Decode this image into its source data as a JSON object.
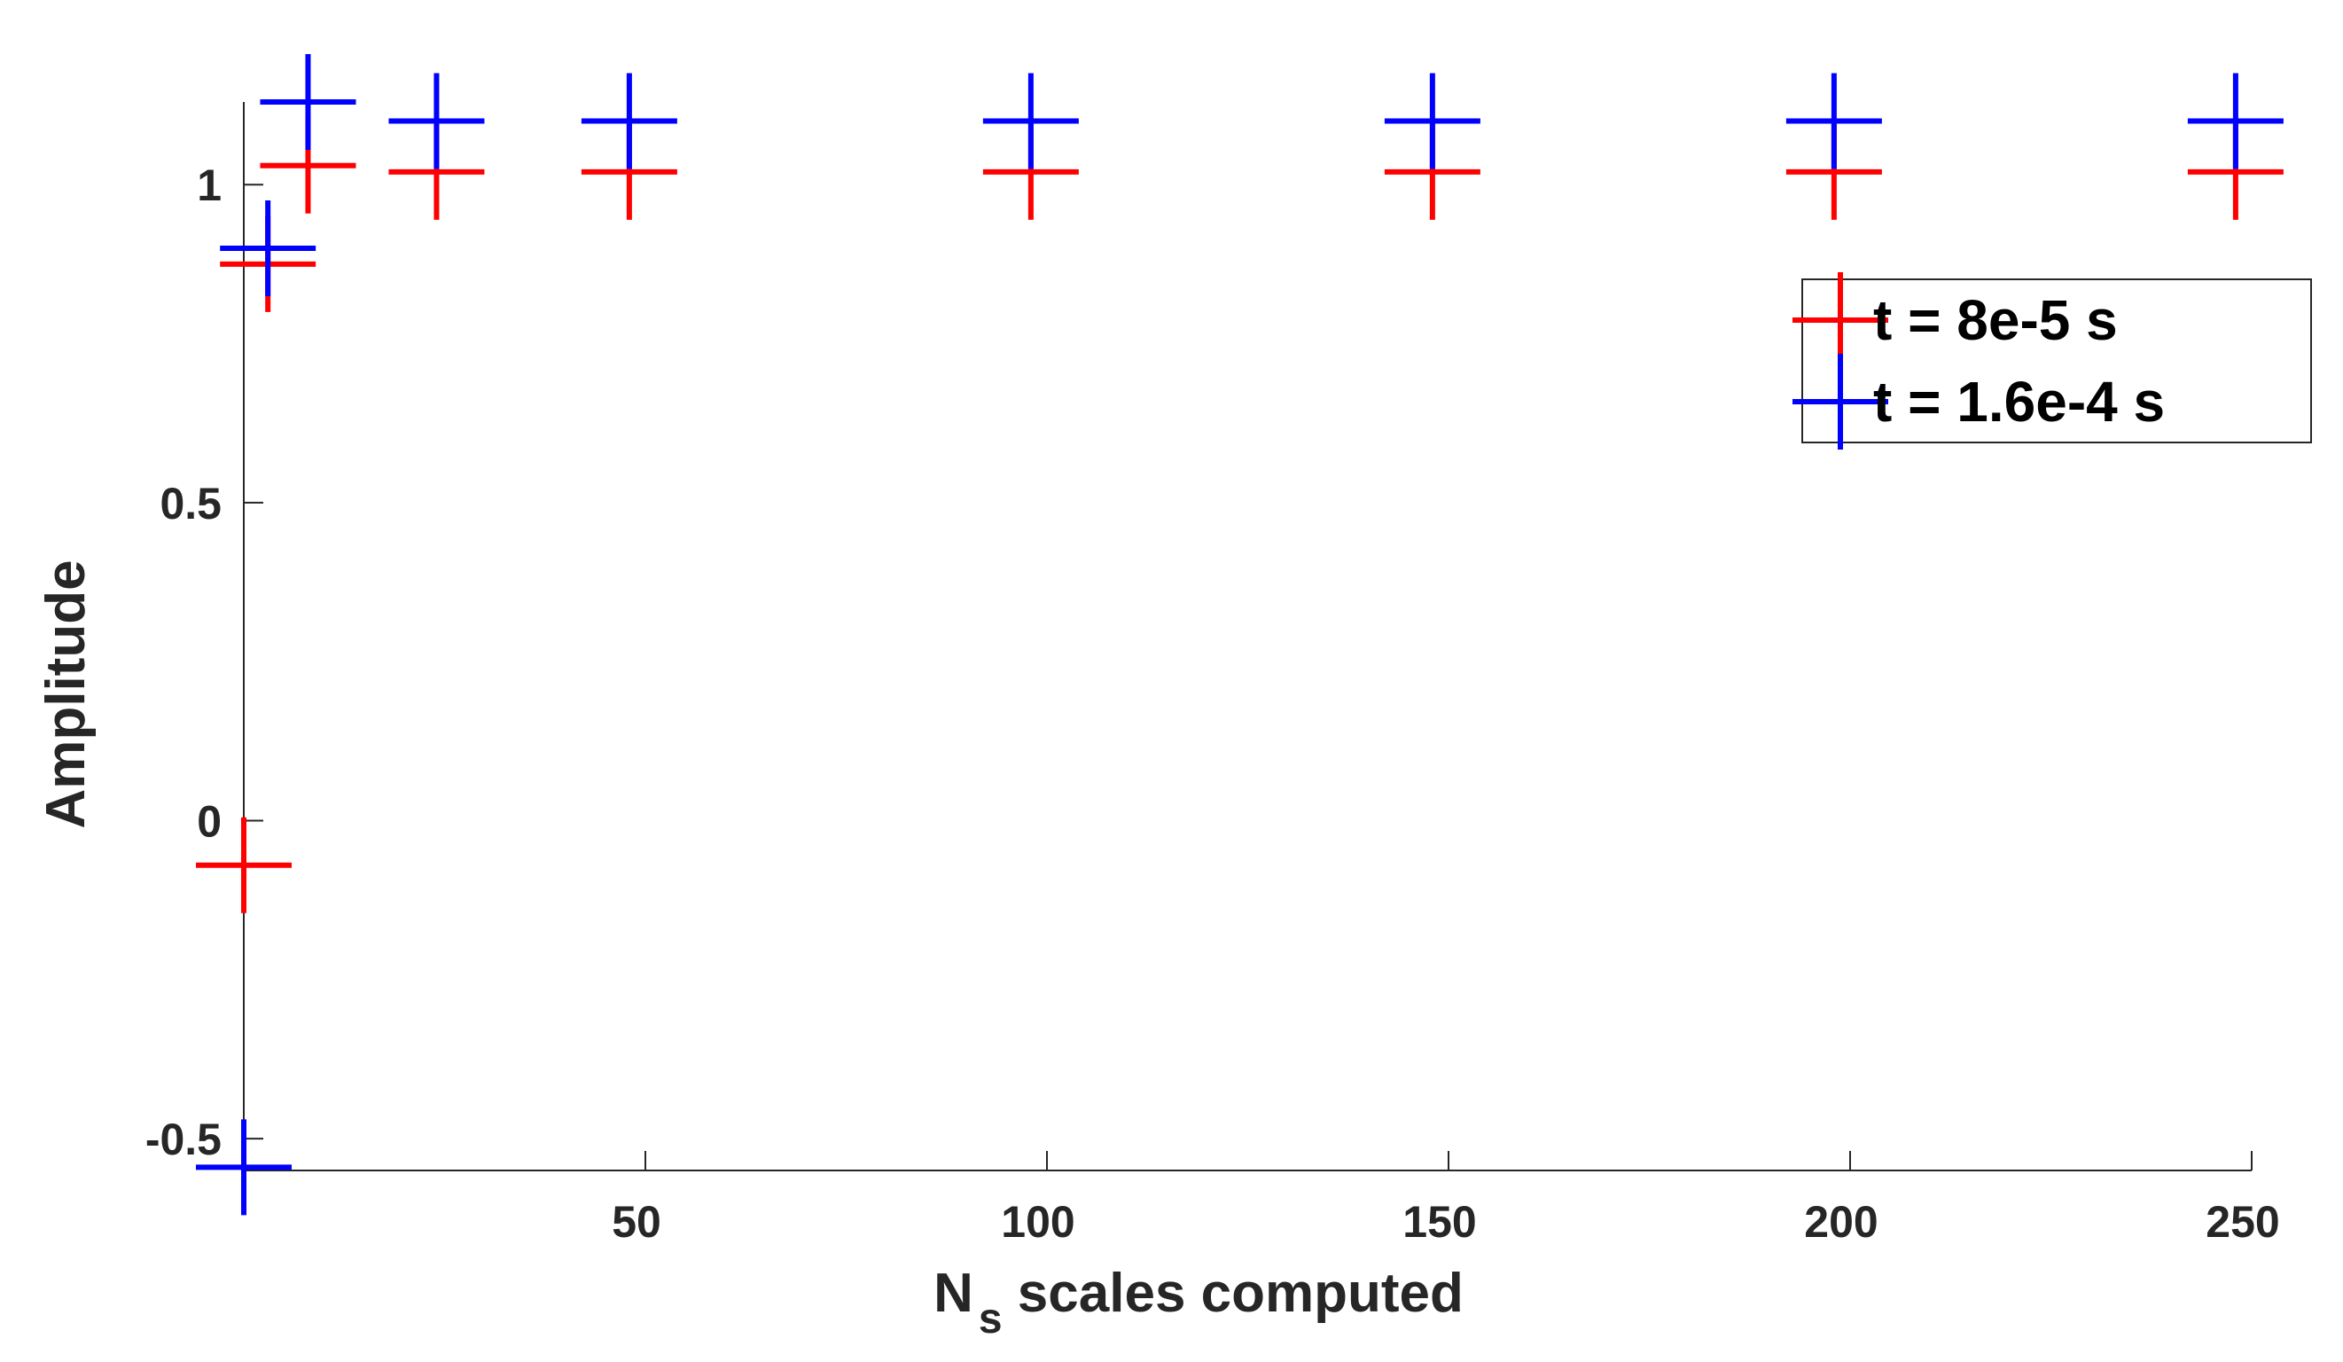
{
  "chart_data": {
    "type": "scatter",
    "marker": "plus",
    "xlabel": {
      "main": "N",
      "subscript": "s",
      "rest": " scales computed"
    },
    "ylabel": "Amplitude",
    "xlim": [
      0,
      250
    ],
    "ylim": [
      -0.55,
      1.13
    ],
    "xticks": [
      50,
      100,
      150,
      200,
      250
    ],
    "xtick_labels": [
      "50",
      "100",
      "150",
      "200",
      "250"
    ],
    "yticks": [
      -0.5,
      0,
      0.5,
      1
    ],
    "ytick_labels": [
      "-0.5",
      "0",
      "0.5",
      "1"
    ],
    "legend_location": "upper right",
    "series": [
      {
        "name": "t = 8e-5 s",
        "color": "#ff0000",
        "x": [
          0,
          3,
          8,
          24,
          48,
          98,
          148,
          198,
          248
        ],
        "y": [
          -0.07,
          0.875,
          1.03,
          1.02,
          1.02,
          1.02,
          1.02,
          1.02,
          1.02
        ]
      },
      {
        "name": "t = 1.6e-4 s",
        "color": "#0000ff",
        "x": [
          0,
          3,
          8,
          24,
          48,
          98,
          148,
          198,
          248
        ],
        "y": [
          -0.545,
          0.9,
          1.13,
          1.1,
          1.1,
          1.1,
          1.1,
          1.1,
          1.1
        ]
      }
    ]
  }
}
